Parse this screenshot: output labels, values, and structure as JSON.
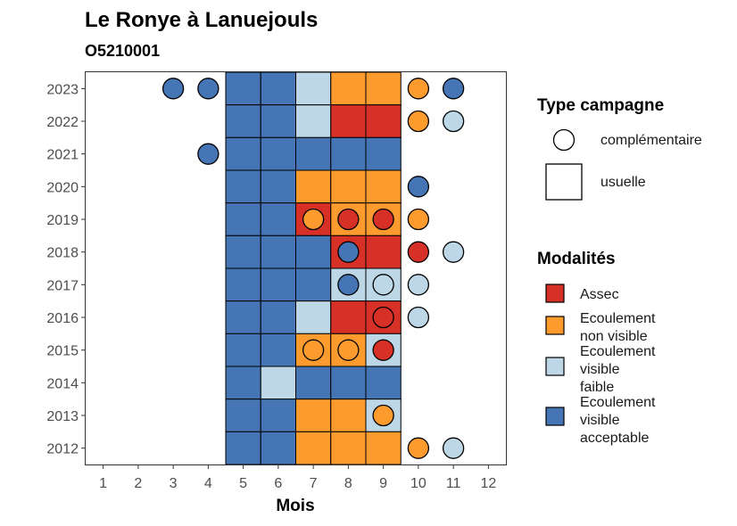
{
  "chart_data": {
    "type": "heatmap",
    "title": "Le Ronye à Lanuejouls",
    "subtitle": "O5210001",
    "xlabel": "Mois",
    "ylabel": "",
    "x_ticks": [
      "1",
      "2",
      "3",
      "4",
      "5",
      "6",
      "7",
      "8",
      "9",
      "10",
      "11",
      "12"
    ],
    "y_ticks": [
      "2012",
      "2013",
      "2014",
      "2015",
      "2016",
      "2017",
      "2018",
      "2019",
      "2020",
      "2021",
      "2022",
      "2023"
    ],
    "xlim": [
      0.5,
      12.5
    ],
    "ylim": [
      2011.5,
      2023.5
    ],
    "grid": false,
    "legend_position": "right",
    "colors": {
      "Assec": "#d73027",
      "Ecoulement non visible": "#fd9b2f",
      "Ecoulement visible faible": "#bdd7e7",
      "Ecoulement visible acceptable": "#4575b4"
    },
    "legend_campagne": {
      "title": "Type campagne",
      "items": [
        {
          "label": "complémentaire",
          "shape": "circle"
        },
        {
          "label": "usuelle",
          "shape": "square"
        }
      ]
    },
    "legend_modalites": {
      "title": "Modalités",
      "items": [
        {
          "key": "Assec",
          "lines": [
            "Assec"
          ]
        },
        {
          "key": "Ecoulement non visible",
          "lines": [
            "Ecoulement",
            "non visible"
          ]
        },
        {
          "key": "Ecoulement visible faible",
          "lines": [
            "Ecoulement",
            "visible",
            "faible"
          ]
        },
        {
          "key": "Ecoulement visible acceptable",
          "lines": [
            "Ecoulement",
            "visible",
            "acceptable"
          ]
        }
      ]
    },
    "usuelle": [
      {
        "year": 2023,
        "month": 5,
        "value": "Ecoulement visible acceptable"
      },
      {
        "year": 2023,
        "month": 6,
        "value": "Ecoulement visible acceptable"
      },
      {
        "year": 2023,
        "month": 7,
        "value": "Ecoulement visible faible"
      },
      {
        "year": 2023,
        "month": 8,
        "value": "Ecoulement non visible"
      },
      {
        "year": 2023,
        "month": 9,
        "value": "Ecoulement non visible"
      },
      {
        "year": 2022,
        "month": 5,
        "value": "Ecoulement visible acceptable"
      },
      {
        "year": 2022,
        "month": 6,
        "value": "Ecoulement visible acceptable"
      },
      {
        "year": 2022,
        "month": 7,
        "value": "Ecoulement visible faible"
      },
      {
        "year": 2022,
        "month": 8,
        "value": "Assec"
      },
      {
        "year": 2022,
        "month": 9,
        "value": "Assec"
      },
      {
        "year": 2021,
        "month": 5,
        "value": "Ecoulement visible acceptable"
      },
      {
        "year": 2021,
        "month": 6,
        "value": "Ecoulement visible acceptable"
      },
      {
        "year": 2021,
        "month": 7,
        "value": "Ecoulement visible acceptable"
      },
      {
        "year": 2021,
        "month": 8,
        "value": "Ecoulement visible acceptable"
      },
      {
        "year": 2021,
        "month": 9,
        "value": "Ecoulement visible acceptable"
      },
      {
        "year": 2020,
        "month": 5,
        "value": "Ecoulement visible acceptable"
      },
      {
        "year": 2020,
        "month": 6,
        "value": "Ecoulement visible acceptable"
      },
      {
        "year": 2020,
        "month": 7,
        "value": "Ecoulement non visible"
      },
      {
        "year": 2020,
        "month": 8,
        "value": "Ecoulement non visible"
      },
      {
        "year": 2020,
        "month": 9,
        "value": "Ecoulement non visible"
      },
      {
        "year": 2019,
        "month": 5,
        "value": "Ecoulement visible acceptable"
      },
      {
        "year": 2019,
        "month": 6,
        "value": "Ecoulement visible acceptable"
      },
      {
        "year": 2019,
        "month": 7,
        "value": "Assec"
      },
      {
        "year": 2019,
        "month": 8,
        "value": "Ecoulement non visible"
      },
      {
        "year": 2019,
        "month": 9,
        "value": "Ecoulement non visible"
      },
      {
        "year": 2018,
        "month": 5,
        "value": "Ecoulement visible acceptable"
      },
      {
        "year": 2018,
        "month": 6,
        "value": "Ecoulement visible acceptable"
      },
      {
        "year": 2018,
        "month": 7,
        "value": "Ecoulement visible acceptable"
      },
      {
        "year": 2018,
        "month": 8,
        "value": "Assec"
      },
      {
        "year": 2018,
        "month": 9,
        "value": "Assec"
      },
      {
        "year": 2017,
        "month": 5,
        "value": "Ecoulement visible acceptable"
      },
      {
        "year": 2017,
        "month": 6,
        "value": "Ecoulement visible acceptable"
      },
      {
        "year": 2017,
        "month": 7,
        "value": "Ecoulement visible acceptable"
      },
      {
        "year": 2017,
        "month": 8,
        "value": "Ecoulement visible faible"
      },
      {
        "year": 2017,
        "month": 9,
        "value": "Ecoulement visible faible"
      },
      {
        "year": 2016,
        "month": 5,
        "value": "Ecoulement visible acceptable"
      },
      {
        "year": 2016,
        "month": 6,
        "value": "Ecoulement visible acceptable"
      },
      {
        "year": 2016,
        "month": 7,
        "value": "Ecoulement visible faible"
      },
      {
        "year": 2016,
        "month": 8,
        "value": "Assec"
      },
      {
        "year": 2016,
        "month": 9,
        "value": "Assec"
      },
      {
        "year": 2015,
        "month": 5,
        "value": "Ecoulement visible acceptable"
      },
      {
        "year": 2015,
        "month": 6,
        "value": "Ecoulement visible acceptable"
      },
      {
        "year": 2015,
        "month": 7,
        "value": "Ecoulement non visible"
      },
      {
        "year": 2015,
        "month": 8,
        "value": "Ecoulement non visible"
      },
      {
        "year": 2015,
        "month": 9,
        "value": "Ecoulement visible faible"
      },
      {
        "year": 2014,
        "month": 5,
        "value": "Ecoulement visible acceptable"
      },
      {
        "year": 2014,
        "month": 6,
        "value": "Ecoulement visible faible"
      },
      {
        "year": 2014,
        "month": 7,
        "value": "Ecoulement visible acceptable"
      },
      {
        "year": 2014,
        "month": 8,
        "value": "Ecoulement visible acceptable"
      },
      {
        "year": 2014,
        "month": 9,
        "value": "Ecoulement visible acceptable"
      },
      {
        "year": 2013,
        "month": 5,
        "value": "Ecoulement visible acceptable"
      },
      {
        "year": 2013,
        "month": 6,
        "value": "Ecoulement visible acceptable"
      },
      {
        "year": 2013,
        "month": 7,
        "value": "Ecoulement non visible"
      },
      {
        "year": 2013,
        "month": 8,
        "value": "Ecoulement non visible"
      },
      {
        "year": 2013,
        "month": 9,
        "value": "Ecoulement visible faible"
      },
      {
        "year": 2012,
        "month": 5,
        "value": "Ecoulement visible acceptable"
      },
      {
        "year": 2012,
        "month": 6,
        "value": "Ecoulement visible acceptable"
      },
      {
        "year": 2012,
        "month": 7,
        "value": "Ecoulement non visible"
      },
      {
        "year": 2012,
        "month": 8,
        "value": "Ecoulement non visible"
      },
      {
        "year": 2012,
        "month": 9,
        "value": "Ecoulement non visible"
      }
    ],
    "complementaire": [
      {
        "year": 2023,
        "month": 3,
        "value": "Ecoulement visible acceptable"
      },
      {
        "year": 2023,
        "month": 4,
        "value": "Ecoulement visible acceptable"
      },
      {
        "year": 2023,
        "month": 10,
        "value": "Ecoulement non visible"
      },
      {
        "year": 2023,
        "month": 11,
        "value": "Ecoulement visible acceptable"
      },
      {
        "year": 2022,
        "month": 10,
        "value": "Ecoulement non visible"
      },
      {
        "year": 2022,
        "month": 11,
        "value": "Ecoulement visible faible"
      },
      {
        "year": 2021,
        "month": 4,
        "value": "Ecoulement visible acceptable"
      },
      {
        "year": 2020,
        "month": 10,
        "value": "Ecoulement visible acceptable"
      },
      {
        "year": 2019,
        "month": 7,
        "value": "Ecoulement non visible"
      },
      {
        "year": 2019,
        "month": 8,
        "value": "Assec"
      },
      {
        "year": 2019,
        "month": 9,
        "value": "Assec"
      },
      {
        "year": 2019,
        "month": 10,
        "value": "Ecoulement non visible"
      },
      {
        "year": 2018,
        "month": 8,
        "value": "Ecoulement visible acceptable"
      },
      {
        "year": 2018,
        "month": 10,
        "value": "Assec"
      },
      {
        "year": 2018,
        "month": 11,
        "value": "Ecoulement visible faible"
      },
      {
        "year": 2017,
        "month": 8,
        "value": "Ecoulement visible acceptable"
      },
      {
        "year": 2017,
        "month": 9,
        "value": "Ecoulement visible faible"
      },
      {
        "year": 2017,
        "month": 10,
        "value": "Ecoulement visible faible"
      },
      {
        "year": 2016,
        "month": 9,
        "value": "Assec"
      },
      {
        "year": 2016,
        "month": 10,
        "value": "Ecoulement visible faible"
      },
      {
        "year": 2015,
        "month": 7,
        "value": "Ecoulement non visible"
      },
      {
        "year": 2015,
        "month": 8,
        "value": "Ecoulement non visible"
      },
      {
        "year": 2015,
        "month": 9,
        "value": "Assec"
      },
      {
        "year": 2013,
        "month": 9,
        "value": "Ecoulement non visible"
      },
      {
        "year": 2012,
        "month": 10,
        "value": "Ecoulement non visible"
      },
      {
        "year": 2012,
        "month": 11,
        "value": "Ecoulement visible faible"
      }
    ]
  }
}
